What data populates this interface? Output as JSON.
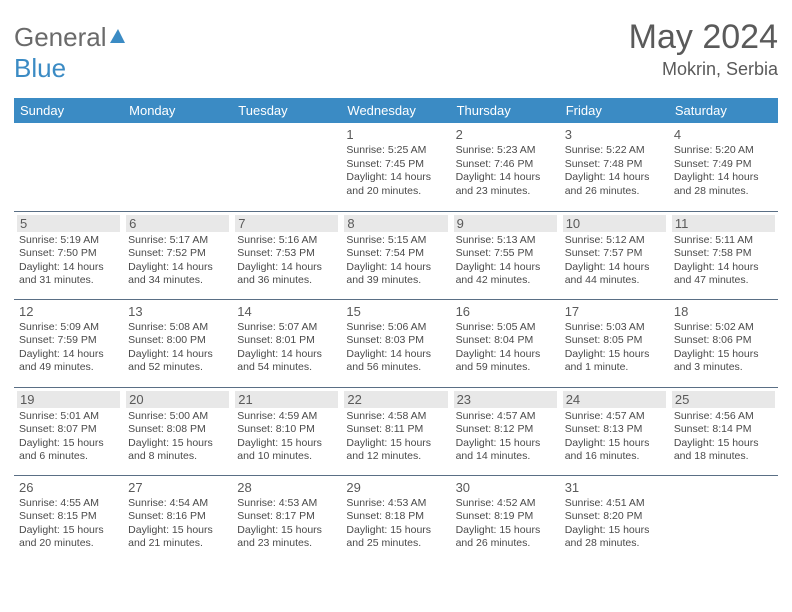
{
  "brand": {
    "part1": "General",
    "part2": "Blue"
  },
  "title": "May 2024",
  "location": "Mokrin, Serbia",
  "colors": {
    "header_bg": "#3b8bc4",
    "header_text": "#ffffff",
    "border": "#5a6f85",
    "alt_row_daynum_bg": "#e8e8e8",
    "body_text": "#4a4a4a",
    "title_text": "#5a5a5a",
    "page_bg": "#ffffff"
  },
  "typography": {
    "title_fontsize": 34,
    "location_fontsize": 18,
    "dayheader_fontsize": 13,
    "daynum_fontsize": 13,
    "body_fontsize": 10.5
  },
  "day_headers": [
    "Sunday",
    "Monday",
    "Tuesday",
    "Wednesday",
    "Thursday",
    "Friday",
    "Saturday"
  ],
  "weeks": [
    {
      "alt": false,
      "days": [
        null,
        null,
        null,
        {
          "n": "1",
          "sunrise": "5:25 AM",
          "sunset": "7:45 PM",
          "daylight": "14 hours and 20 minutes."
        },
        {
          "n": "2",
          "sunrise": "5:23 AM",
          "sunset": "7:46 PM",
          "daylight": "14 hours and 23 minutes."
        },
        {
          "n": "3",
          "sunrise": "5:22 AM",
          "sunset": "7:48 PM",
          "daylight": "14 hours and 26 minutes."
        },
        {
          "n": "4",
          "sunrise": "5:20 AM",
          "sunset": "7:49 PM",
          "daylight": "14 hours and 28 minutes."
        }
      ]
    },
    {
      "alt": true,
      "days": [
        {
          "n": "5",
          "sunrise": "5:19 AM",
          "sunset": "7:50 PM",
          "daylight": "14 hours and 31 minutes."
        },
        {
          "n": "6",
          "sunrise": "5:17 AM",
          "sunset": "7:52 PM",
          "daylight": "14 hours and 34 minutes."
        },
        {
          "n": "7",
          "sunrise": "5:16 AM",
          "sunset": "7:53 PM",
          "daylight": "14 hours and 36 minutes."
        },
        {
          "n": "8",
          "sunrise": "5:15 AM",
          "sunset": "7:54 PM",
          "daylight": "14 hours and 39 minutes."
        },
        {
          "n": "9",
          "sunrise": "5:13 AM",
          "sunset": "7:55 PM",
          "daylight": "14 hours and 42 minutes."
        },
        {
          "n": "10",
          "sunrise": "5:12 AM",
          "sunset": "7:57 PM",
          "daylight": "14 hours and 44 minutes."
        },
        {
          "n": "11",
          "sunrise": "5:11 AM",
          "sunset": "7:58 PM",
          "daylight": "14 hours and 47 minutes."
        }
      ]
    },
    {
      "alt": false,
      "days": [
        {
          "n": "12",
          "sunrise": "5:09 AM",
          "sunset": "7:59 PM",
          "daylight": "14 hours and 49 minutes."
        },
        {
          "n": "13",
          "sunrise": "5:08 AM",
          "sunset": "8:00 PM",
          "daylight": "14 hours and 52 minutes."
        },
        {
          "n": "14",
          "sunrise": "5:07 AM",
          "sunset": "8:01 PM",
          "daylight": "14 hours and 54 minutes."
        },
        {
          "n": "15",
          "sunrise": "5:06 AM",
          "sunset": "8:03 PM",
          "daylight": "14 hours and 56 minutes."
        },
        {
          "n": "16",
          "sunrise": "5:05 AM",
          "sunset": "8:04 PM",
          "daylight": "14 hours and 59 minutes."
        },
        {
          "n": "17",
          "sunrise": "5:03 AM",
          "sunset": "8:05 PM",
          "daylight": "15 hours and 1 minute."
        },
        {
          "n": "18",
          "sunrise": "5:02 AM",
          "sunset": "8:06 PM",
          "daylight": "15 hours and 3 minutes."
        }
      ]
    },
    {
      "alt": true,
      "days": [
        {
          "n": "19",
          "sunrise": "5:01 AM",
          "sunset": "8:07 PM",
          "daylight": "15 hours and 6 minutes."
        },
        {
          "n": "20",
          "sunrise": "5:00 AM",
          "sunset": "8:08 PM",
          "daylight": "15 hours and 8 minutes."
        },
        {
          "n": "21",
          "sunrise": "4:59 AM",
          "sunset": "8:10 PM",
          "daylight": "15 hours and 10 minutes."
        },
        {
          "n": "22",
          "sunrise": "4:58 AM",
          "sunset": "8:11 PM",
          "daylight": "15 hours and 12 minutes."
        },
        {
          "n": "23",
          "sunrise": "4:57 AM",
          "sunset": "8:12 PM",
          "daylight": "15 hours and 14 minutes."
        },
        {
          "n": "24",
          "sunrise": "4:57 AM",
          "sunset": "8:13 PM",
          "daylight": "15 hours and 16 minutes."
        },
        {
          "n": "25",
          "sunrise": "4:56 AM",
          "sunset": "8:14 PM",
          "daylight": "15 hours and 18 minutes."
        }
      ]
    },
    {
      "alt": false,
      "days": [
        {
          "n": "26",
          "sunrise": "4:55 AM",
          "sunset": "8:15 PM",
          "daylight": "15 hours and 20 minutes."
        },
        {
          "n": "27",
          "sunrise": "4:54 AM",
          "sunset": "8:16 PM",
          "daylight": "15 hours and 21 minutes."
        },
        {
          "n": "28",
          "sunrise": "4:53 AM",
          "sunset": "8:17 PM",
          "daylight": "15 hours and 23 minutes."
        },
        {
          "n": "29",
          "sunrise": "4:53 AM",
          "sunset": "8:18 PM",
          "daylight": "15 hours and 25 minutes."
        },
        {
          "n": "30",
          "sunrise": "4:52 AM",
          "sunset": "8:19 PM",
          "daylight": "15 hours and 26 minutes."
        },
        {
          "n": "31",
          "sunrise": "4:51 AM",
          "sunset": "8:20 PM",
          "daylight": "15 hours and 28 minutes."
        },
        null
      ]
    }
  ],
  "labels": {
    "sunrise": "Sunrise:",
    "sunset": "Sunset:",
    "daylight": "Daylight:"
  }
}
